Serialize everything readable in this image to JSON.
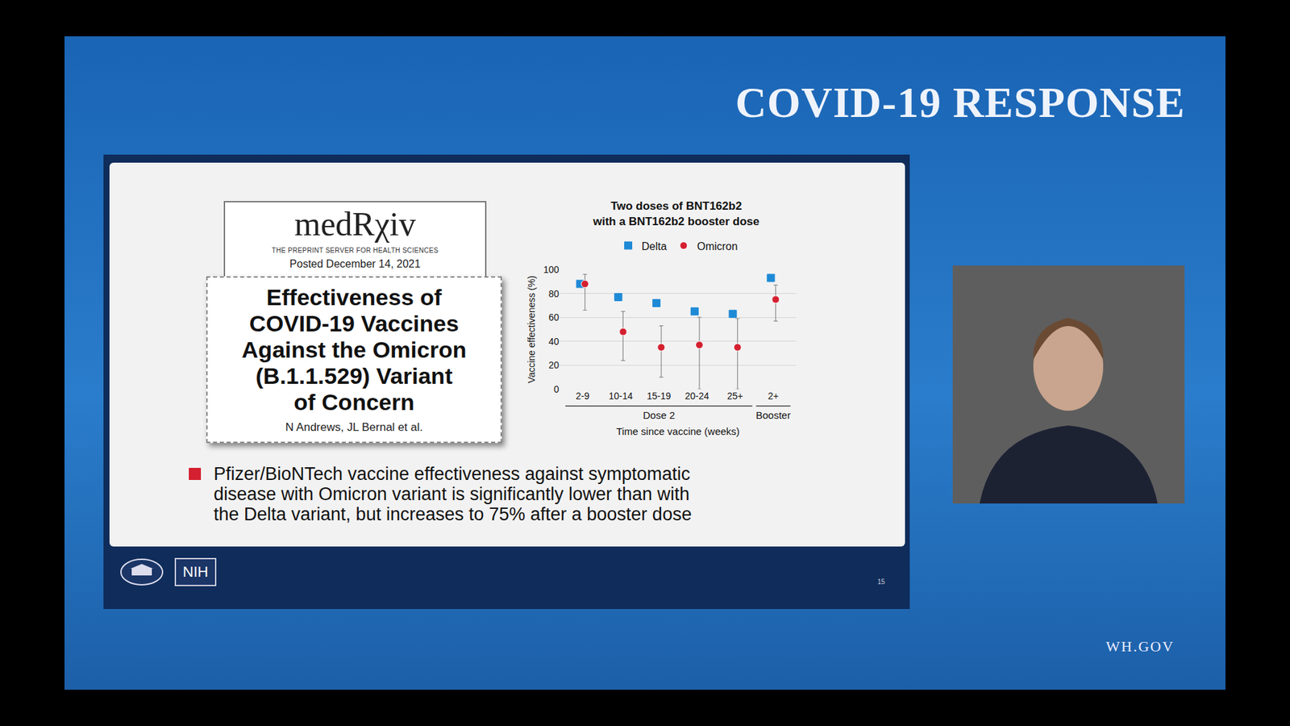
{
  "header": "COVID-19 RESPONSE",
  "slide": {
    "source": {
      "name": "medRχiv",
      "tagline": "THE PREPRINT SERVER FOR HEALTH SCIENCES",
      "posted": "Posted December 14, 2021"
    },
    "paper": {
      "title": [
        "Effectiveness of",
        "COVID-19 Vaccines",
        "Against the Omicron",
        "(B.1.1.529) Variant",
        "of Concern"
      ],
      "authors": "N Andrews, JL Bernal et al."
    },
    "bullet": [
      "Pfizer/BioNTech vaccine effectiveness against symptomatic",
      "disease with Omicron variant is significantly lower than with",
      "the Delta variant, but increases to 75% after a booster dose"
    ],
    "footer_logo": "NIH",
    "page_number": 15
  },
  "site": "WH.GOV",
  "chart_data": {
    "type": "scatter",
    "title": [
      "Two doses of BNT162b2",
      "with a BNT162b2 booster dose"
    ],
    "x_label": "Time since vaccine (weeks)",
    "y_label": "Vaccine effectiveness (%)",
    "categories": [
      "2-9",
      "10-14",
      "15-19",
      "20-24",
      "25+",
      "2+"
    ],
    "groups": [
      {
        "label": "Dose 2",
        "from": "2-9",
        "to": "25+"
      },
      {
        "label": "Booster",
        "from": "2+",
        "to": "2+"
      }
    ],
    "series": [
      {
        "name": "Delta",
        "color": "#1e8ad6",
        "marker": "square",
        "values": [
          88,
          77,
          72,
          65,
          63,
          93
        ]
      },
      {
        "name": "Omicron",
        "color": "#d42030",
        "marker": "circle",
        "values": [
          88,
          48,
          35,
          37,
          35,
          75
        ],
        "error_low": [
          66,
          24,
          10,
          0,
          0,
          57
        ],
        "error_high": [
          96,
          65,
          53,
          60,
          59,
          87
        ]
      }
    ],
    "ylim": [
      0,
      100
    ],
    "yticks": [
      0,
      20,
      40,
      60,
      80,
      100
    ],
    "grid": true,
    "legend": "top"
  }
}
